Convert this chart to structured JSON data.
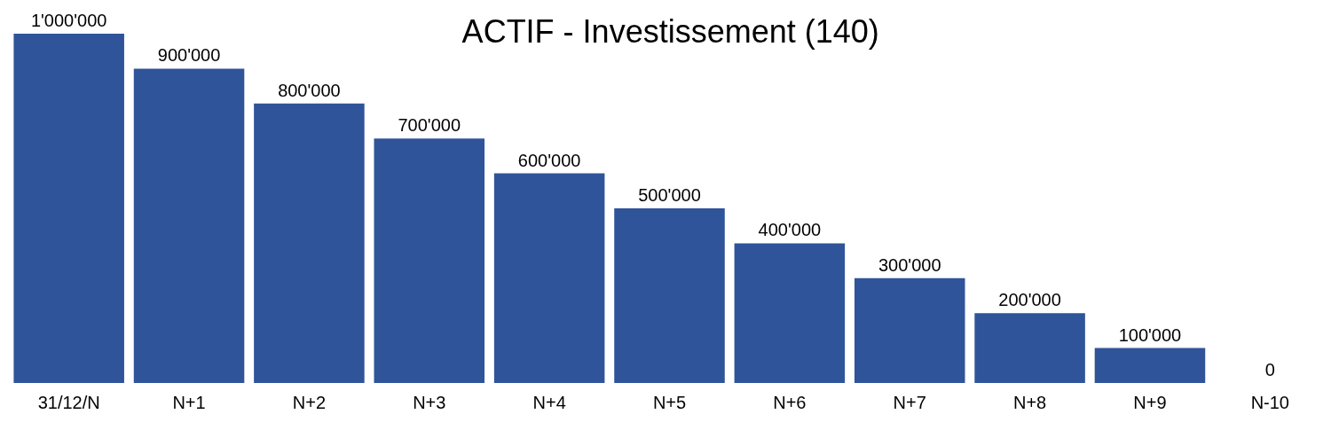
{
  "chart_data": {
    "type": "bar",
    "title": "ACTIF - Investissement (140)",
    "categories": [
      "31/12/N",
      "N+1",
      "N+2",
      "N+3",
      "N+4",
      "N+5",
      "N+6",
      "N+7",
      "N+8",
      "N+9",
      "N-10"
    ],
    "values": [
      1000000,
      900000,
      800000,
      700000,
      600000,
      500000,
      400000,
      300000,
      200000,
      100000,
      0
    ],
    "value_labels": [
      "1'000'000",
      "900'000",
      "800'000",
      "700'000",
      "600'000",
      "500'000",
      "400'000",
      "300'000",
      "200'000",
      "100'000",
      "0"
    ],
    "color": "#30549a"
  }
}
